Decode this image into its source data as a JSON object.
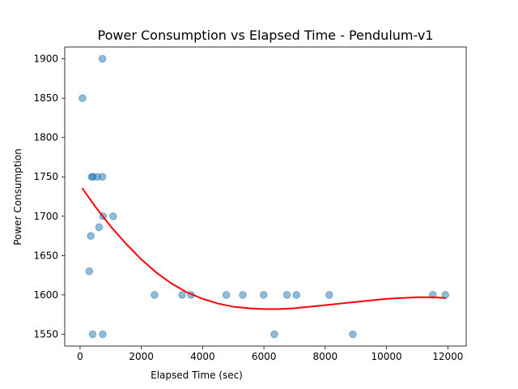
{
  "chart_data": {
    "type": "scatter",
    "title": "Power Consumption vs Elapsed Time - Pendulum-v1",
    "xlabel": "Elapsed Time (sec)",
    "ylabel": "Power Consumption",
    "xlim": [
      -500,
      12600
    ],
    "ylim": [
      1535,
      1915
    ],
    "xticks": [
      0,
      2000,
      4000,
      6000,
      8000,
      10000,
      12000
    ],
    "yticks": [
      1550,
      1600,
      1650,
      1700,
      1750,
      1800,
      1850,
      1900
    ],
    "grid": false,
    "colors": {
      "points": "#1f77b4",
      "trend": "#ff0000"
    },
    "series": [
      {
        "kind": "points",
        "x": [
          80,
          380,
          420,
          560,
          730,
          730,
          750,
          1080,
          620,
          350,
          300,
          410,
          740,
          2430,
          3330,
          3620,
          4770,
          5310,
          5990,
          6340,
          6750,
          7060,
          8130,
          8900,
          11510,
          11920
        ],
        "y": [
          1850,
          1750,
          1750,
          1750,
          1750,
          1900,
          1700,
          1700,
          1686,
          1675,
          1630,
          1550,
          1550,
          1600,
          1600,
          1600,
          1600,
          1600,
          1600,
          1550,
          1600,
          1600,
          1600,
          1550,
          1600,
          1600
        ]
      },
      {
        "kind": "trend",
        "x": [
          80,
          500,
          1000,
          1500,
          2000,
          2500,
          3000,
          3500,
          4000,
          4500,
          5000,
          5500,
          6000,
          6500,
          7000,
          7500,
          8000,
          8500,
          9000,
          9500,
          10000,
          10500,
          11000,
          11500,
          11920
        ],
        "y": [
          1735,
          1712,
          1687,
          1665,
          1645,
          1628,
          1614,
          1603,
          1595,
          1589,
          1585,
          1583,
          1582,
          1582,
          1583,
          1585,
          1587,
          1589,
          1591,
          1593,
          1595,
          1596,
          1597,
          1597,
          1596
        ]
      }
    ]
  }
}
